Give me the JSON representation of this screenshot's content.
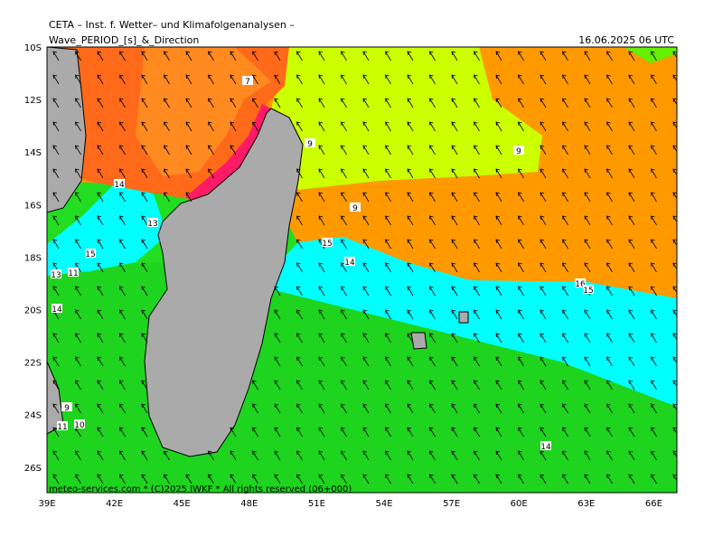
{
  "header": {
    "title": "CETA – Inst. f. Wetter– und Klimafolgenanalysen –",
    "subtitle": "Wave_PERIOD_[s]_&_Direction",
    "timestamp": "16.06.2025 06 UTC"
  },
  "lat_labels": [
    "10S",
    "12S",
    "14S",
    "16S",
    "18S",
    "20S",
    "22S",
    "24S",
    "26S"
  ],
  "lon_labels": [
    "39E",
    "42E",
    "45E",
    "48E",
    "51E",
    "54E",
    "57E",
    "60E",
    "63E",
    "66E"
  ],
  "contour_labels": [
    "7",
    "9",
    "9",
    "9",
    "14",
    "13",
    "15",
    "15",
    "14",
    "13",
    "11",
    "14",
    "9",
    "11",
    "10",
    "16",
    "15",
    "14"
  ],
  "footer": "meteo-services.com * (C)2025 IWKF * All rights reserved (06+000)"
}
